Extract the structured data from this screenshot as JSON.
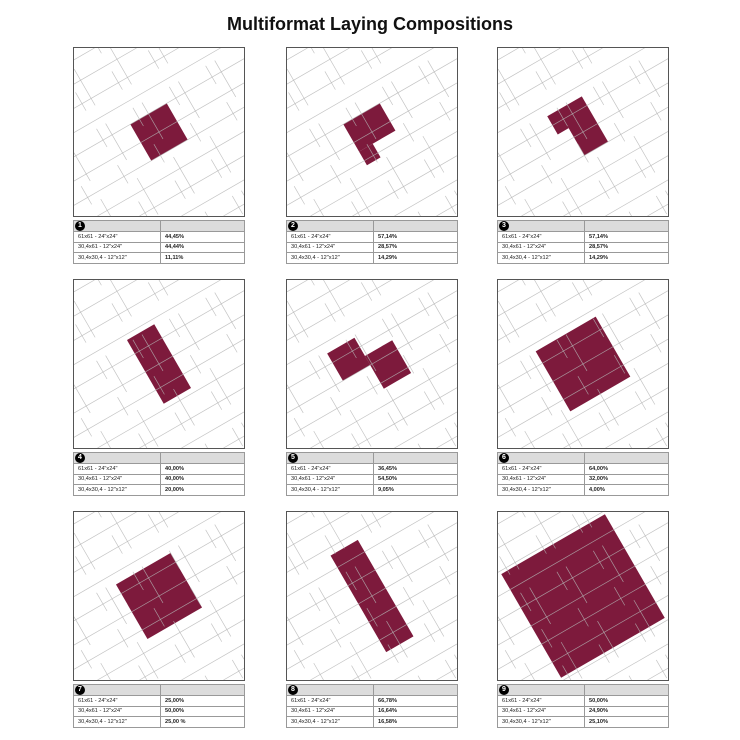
{
  "title": "Multiformat Laying Compositions",
  "colors": {
    "tile_highlight": "#7d1a3c",
    "grid_line": "#b5b5b5"
  },
  "compositions": [
    {
      "number": "1",
      "rows": [
        {
          "size": "61x61 - 24\"x24\"",
          "pct": "44,45%"
        },
        {
          "size": "30,4x61 - 12\"x24\"",
          "pct": "44,44%"
        },
        {
          "size": "30,4x30,4 - 12\"x12\"",
          "pct": "11,11%"
        }
      ]
    },
    {
      "number": "2",
      "rows": [
        {
          "size": "61x61 - 24\"x24\"",
          "pct": "57,14%"
        },
        {
          "size": "30,4x61 - 12\"x24\"",
          "pct": "28,57%"
        },
        {
          "size": "30,4x30,4 - 12\"x12\"",
          "pct": "14,29%"
        }
      ]
    },
    {
      "number": "3",
      "rows": [
        {
          "size": "61x61 - 24\"x24\"",
          "pct": "57,14%"
        },
        {
          "size": "30,4x61 - 12\"x24\"",
          "pct": "28,57%"
        },
        {
          "size": "30,4x30,4 - 12\"x12\"",
          "pct": "14,29%"
        }
      ]
    },
    {
      "number": "4",
      "rows": [
        {
          "size": "61x61 - 24\"x24\"",
          "pct": "40,00%"
        },
        {
          "size": "30,4x61 - 12\"x24\"",
          "pct": "40,00%"
        },
        {
          "size": "30,4x30,4 - 12\"x12\"",
          "pct": "20,00%"
        }
      ]
    },
    {
      "number": "5",
      "rows": [
        {
          "size": "61x61 - 24\"x24\"",
          "pct": "36,45%"
        },
        {
          "size": "30,4x61 - 12\"x24\"",
          "pct": "54,50%"
        },
        {
          "size": "30,4x30,4 - 12\"x12\"",
          "pct": "9,05%"
        }
      ]
    },
    {
      "number": "6",
      "rows": [
        {
          "size": "61x61 - 24\"x24\"",
          "pct": "64,00%"
        },
        {
          "size": "30,4x61 - 12\"x24\"",
          "pct": "32,00%"
        },
        {
          "size": "30,4x30,4 - 12\"x12\"",
          "pct": "4,00%"
        }
      ]
    },
    {
      "number": "7",
      "rows": [
        {
          "size": "61x61 - 24\"x24\"",
          "pct": "25,00%"
        },
        {
          "size": "30,4x61 - 12\"x24\"",
          "pct": "50,00%"
        },
        {
          "size": "30,4x30,4 - 12\"x12\"",
          "pct": "25,00 %"
        }
      ]
    },
    {
      "number": "8",
      "rows": [
        {
          "size": "61x61 - 24\"x24\"",
          "pct": "66,78%"
        },
        {
          "size": "30,4x61 - 12\"x24\"",
          "pct": "16,64%"
        },
        {
          "size": "30,4x30,4 - 12\"x12\"",
          "pct": "16,58%"
        }
      ]
    },
    {
      "number": "9",
      "rows": [
        {
          "size": "61x61 - 24\"x24\"",
          "pct": "50,00%"
        },
        {
          "size": "30,4x61 - 12\"x24\"",
          "pct": "24,90%"
        },
        {
          "size": "30,4x30,4 - 12\"x12\"",
          "pct": "25,10%"
        }
      ]
    }
  ]
}
